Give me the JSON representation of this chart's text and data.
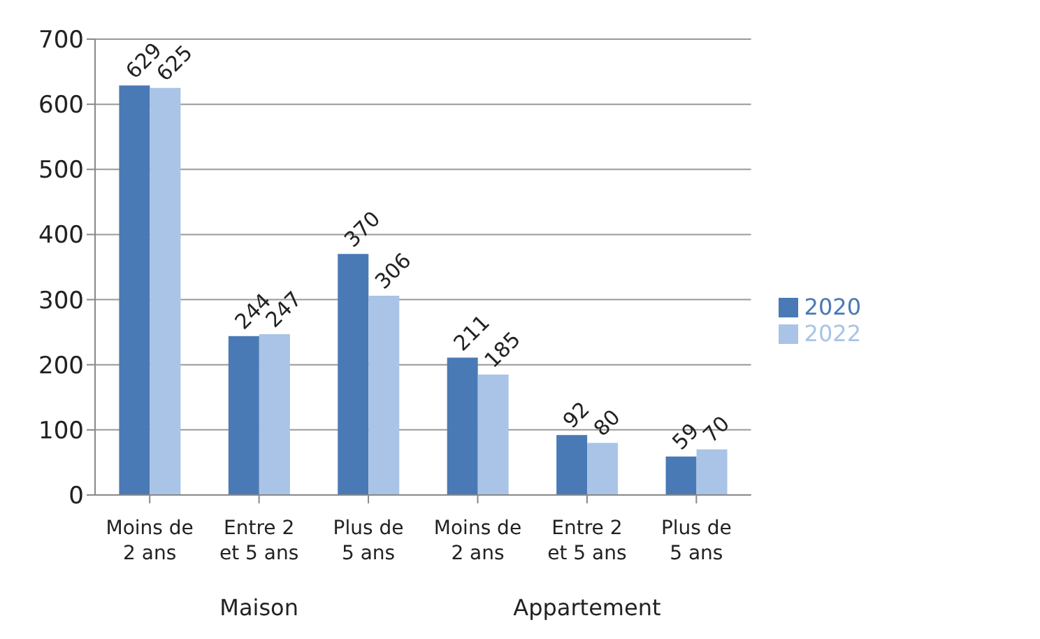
{
  "chart_data": {
    "type": "bar",
    "categories": [
      "Moins de 2 ans",
      "Entre 2 et 5 ans",
      "Plus de 5 ans",
      "Moins de 2 ans",
      "Entre 2 et 5 ans",
      "Plus de 5 ans"
    ],
    "series": [
      {
        "name": "2020",
        "color": "#4a7ab5",
        "values": [
          629,
          244,
          370,
          211,
          92,
          59
        ]
      },
      {
        "name": "2022",
        "color": "#a9c4e6",
        "values": [
          625,
          247,
          306,
          185,
          80,
          70
        ]
      }
    ],
    "annotations": [
      "Maison",
      "Appartement"
    ],
    "ylim": [
      0,
      700
    ],
    "yticks": [
      0,
      100,
      200,
      300,
      400,
      500,
      600,
      700
    ],
    "grid": "y",
    "legend": "right",
    "data_labels": true
  }
}
